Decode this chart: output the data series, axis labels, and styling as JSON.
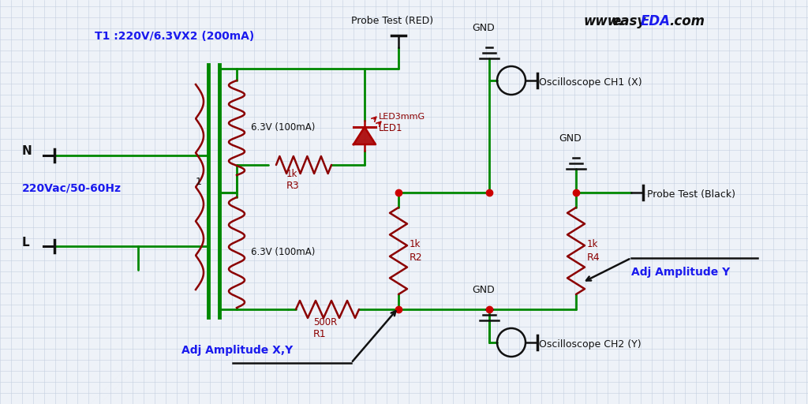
{
  "bg_color": "#eef2f8",
  "grid_color": "#c4cfe0",
  "wire_color": "#008800",
  "resistor_color": "#8b0000",
  "led_color": "#aa0000",
  "junction_color": "#cc0000",
  "blue_color": "#1a1aee",
  "black_color": "#111111",
  "label_220vac": "220Vac/50-60Hz",
  "label_T1": "T1 :220V/6.3VX2 (200mA)",
  "label_6v3": "6.3V (100mA)",
  "label_R1": "R1",
  "label_R1v": "500R",
  "label_R2": "R2",
  "label_R2v": "1k",
  "label_R3": "R3",
  "label_R3v": "1k",
  "label_R4": "R4",
  "label_R4v": "1k",
  "label_LED1": "LED1",
  "label_LED1v": "LED3mmG",
  "label_adj_xy": "Adj Amplitude X,Y",
  "label_adj_y": "Adj Amplitude Y",
  "label_osc_ch2": "Oscilloscope CH2 (Y)",
  "label_osc_ch1": "Oscilloscope CH1 (X)",
  "label_gnd": "GND",
  "label_probe_red": "Probe Test (RED)",
  "label_probe_black": "Probe Test (Black)",
  "label_L": "L",
  "label_N": "N",
  "label_1": "1",
  "website_www": "www.",
  "website_easy": "easy",
  "website_EDA": "EDA",
  "website_com": ".com"
}
